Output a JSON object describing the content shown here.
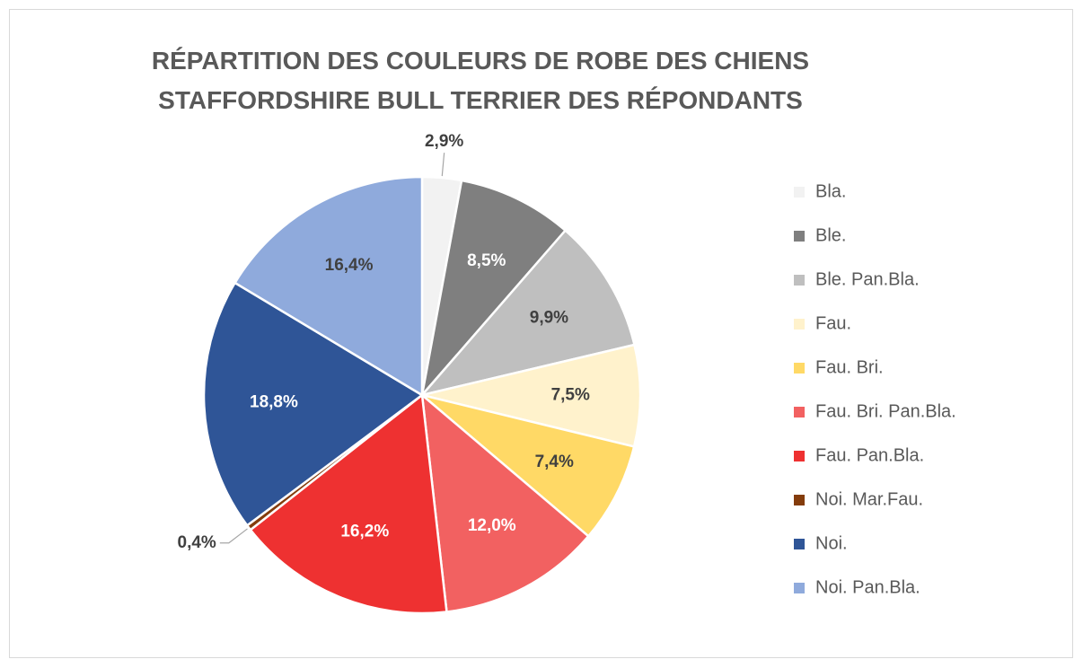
{
  "chart_data": {
    "type": "pie",
    "title": "RÉPARTITION DES COULEURS DE ROBE DES CHIENS STAFFORDSHIRE BULL TERRIER DES RÉPONDANTS",
    "categories": [
      "Bla.",
      "Ble.",
      "Ble. Pan.Bla.",
      "Fau.",
      "Fau. Bri.",
      "Fau. Bri. Pan.Bla.",
      "Fau. Pan.Bla.",
      "Noi. Mar.Fau.",
      "Noi.",
      "Noi. Pan.Bla."
    ],
    "values": [
      2.9,
      8.5,
      9.9,
      7.5,
      7.4,
      12.0,
      16.2,
      0.4,
      18.8,
      16.4
    ],
    "value_labels": [
      "2,9%",
      "8,5%",
      "9,9%",
      "7,5%",
      "7,4%",
      "12,0%",
      "16,2%",
      "0,4%",
      "18,8%",
      "16,4%"
    ],
    "colors": [
      "#f2f2f2",
      "#7f7f7f",
      "#bfbfbf",
      "#fff2cc",
      "#ffd966",
      "#f26161",
      "#ee3131",
      "#843c0c",
      "#2f5597",
      "#8faadc"
    ],
    "legend": "right"
  }
}
